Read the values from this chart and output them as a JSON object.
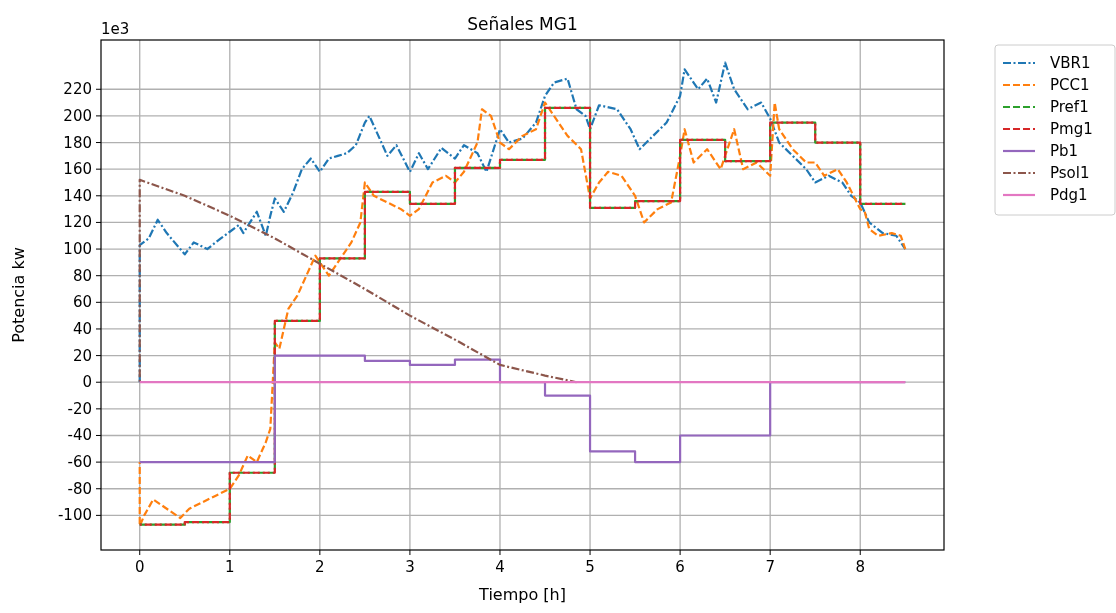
{
  "chart_data": {
    "type": "line",
    "title": "Señales MG1",
    "xlabel": "Tiempo [h]",
    "ylabel": "Potencia kw",
    "annotations": [
      "1e3"
    ],
    "xlim": [
      -0.43,
      8.93
    ],
    "xticks": [
      0,
      1,
      2,
      3,
      4,
      5,
      6,
      7,
      8
    ],
    "ylim": [
      -126,
      257
    ],
    "yticks": [
      -100,
      -80,
      -60,
      -40,
      -20,
      0,
      20,
      40,
      60,
      80,
      100,
      120,
      140,
      160,
      180,
      200,
      220
    ],
    "grid": true,
    "legend": "top right",
    "series": [
      {
        "name": "VBR1",
        "color": "#1f77b4",
        "line_style": "dashdot",
        "x": [
          0,
          0,
          0.1,
          0.2,
          0.3,
          0.45,
          0.5,
          0.6,
          0.75,
          0.9,
          1.0,
          1.1,
          1.15,
          1.3,
          1.4,
          1.45,
          1.5,
          1.6,
          1.7,
          1.8,
          1.9,
          2.0,
          2.1,
          2.2,
          2.3,
          2.4,
          2.5,
          2.55,
          2.65,
          2.75,
          2.85,
          3.0,
          3.1,
          3.2,
          3.35,
          3.5,
          3.6,
          3.75,
          3.85,
          4.0,
          4.1,
          4.25,
          4.4,
          4.5,
          4.6,
          4.75,
          4.85,
          4.95,
          5.0,
          5.1,
          5.3,
          5.45,
          5.55,
          5.7,
          5.85,
          6.0,
          6.05,
          6.2,
          6.3,
          6.4,
          6.5,
          6.6,
          6.75,
          6.9,
          7.0,
          7.1,
          7.25,
          7.4,
          7.5,
          7.65,
          7.8,
          7.9,
          8.0,
          8.1,
          8.25,
          8.4,
          8.5
        ],
        "values": [
          0,
          103,
          108,
          122,
          112,
          100,
          96,
          105,
          100,
          108,
          113,
          118,
          112,
          128,
          110,
          125,
          138,
          128,
          142,
          160,
          168,
          158,
          168,
          170,
          172,
          178,
          195,
          200,
          185,
          170,
          178,
          158,
          172,
          160,
          176,
          168,
          178,
          172,
          158,
          190,
          180,
          183,
          195,
          215,
          225,
          228,
          205,
          200,
          190,
          208,
          205,
          190,
          175,
          185,
          195,
          215,
          235,
          220,
          228,
          210,
          240,
          220,
          205,
          210,
          198,
          180,
          170,
          160,
          150,
          155,
          150,
          140,
          135,
          120,
          112,
          110,
          100
        ]
      },
      {
        "name": "PCC1",
        "color": "#ff7f0e",
        "line_style": "dashed",
        "x": [
          0,
          0,
          0.05,
          0.15,
          0.3,
          0.45,
          0.55,
          0.7,
          0.85,
          1.0,
          1.1,
          1.2,
          1.3,
          1.4,
          1.45,
          1.5,
          1.55,
          1.65,
          1.75,
          1.85,
          1.95,
          2.0,
          2.1,
          2.25,
          2.35,
          2.45,
          2.5,
          2.6,
          2.75,
          2.9,
          3.0,
          3.1,
          3.25,
          3.4,
          3.5,
          3.6,
          3.75,
          3.8,
          3.9,
          4.0,
          4.1,
          4.25,
          4.4,
          4.5,
          4.6,
          4.75,
          4.9,
          5.0,
          5.1,
          5.2,
          5.35,
          5.5,
          5.6,
          5.75,
          5.9,
          6.0,
          6.05,
          6.15,
          6.3,
          6.45,
          6.6,
          6.7,
          6.85,
          7.0,
          7.05,
          7.1,
          7.25,
          7.4,
          7.5,
          7.6,
          7.75,
          7.85,
          8.0,
          8.05,
          8.1,
          8.2,
          8.35,
          8.45,
          8.5
        ],
        "values": [
          -60,
          -108,
          -100,
          -88,
          -95,
          -102,
          -95,
          -90,
          -85,
          -80,
          -70,
          -55,
          -60,
          -45,
          -35,
          30,
          25,
          55,
          65,
          80,
          95,
          90,
          80,
          95,
          105,
          120,
          150,
          140,
          135,
          130,
          125,
          130,
          150,
          155,
          150,
          158,
          180,
          205,
          200,
          180,
          175,
          185,
          190,
          210,
          200,
          185,
          175,
          138,
          150,
          158,
          155,
          140,
          120,
          130,
          135,
          170,
          190,
          165,
          175,
          160,
          190,
          160,
          165,
          155,
          210,
          190,
          175,
          165,
          165,
          155,
          160,
          150,
          130,
          128,
          115,
          110,
          112,
          110,
          100
        ]
      },
      {
        "name": "Pref1",
        "color": "#2ca02c",
        "type": "step",
        "line_style": "dashed",
        "x": [
          0,
          0.5,
          1,
          1.5,
          2,
          2.5,
          3,
          3.5,
          4,
          4.5,
          5,
          5.5,
          6,
          6.5,
          7,
          7.5,
          8,
          8.5
        ],
        "values": [
          -107,
          -105,
          -68,
          46,
          93,
          143,
          134,
          161,
          167,
          206,
          131,
          136,
          182,
          166,
          195,
          180,
          134,
          134
        ]
      },
      {
        "name": "Pmg1",
        "color": "#d62728",
        "type": "step",
        "line_style": "dashed",
        "x": [
          0,
          0.5,
          1,
          1.5,
          2,
          2.5,
          3,
          3.5,
          4,
          4.5,
          5,
          5.5,
          6,
          6.5,
          7,
          7.5,
          8,
          8.5
        ],
        "values": [
          -107,
          -105,
          -68,
          46,
          93,
          143,
          134,
          161,
          167,
          206,
          131,
          136,
          182,
          166,
          195,
          180,
          134,
          134
        ]
      },
      {
        "name": "Pb1",
        "color": "#9467bd",
        "type": "step",
        "line_style": "solid",
        "x": [
          0,
          1.5,
          2.5,
          3,
          3.5,
          4,
          4.5,
          5,
          5.5,
          6,
          7,
          8.5
        ],
        "values": [
          -60,
          20,
          16,
          13,
          17,
          0,
          -10,
          -52,
          -60,
          -40,
          0,
          0
        ]
      },
      {
        "name": "Psol1",
        "color": "#8c564b",
        "line_style": "dashdot",
        "x": [
          0,
          0,
          0.5,
          1,
          1.5,
          2,
          2.5,
          3,
          3.5,
          4,
          4.5,
          4.85
        ],
        "values": [
          0,
          152,
          140,
          125,
          108,
          89,
          70,
          50,
          32,
          13,
          5,
          0
        ]
      },
      {
        "name": "Pdg1",
        "color": "#e377c2",
        "line_style": "solid",
        "x": [
          0,
          8.5
        ],
        "values": [
          0,
          0
        ]
      }
    ]
  }
}
